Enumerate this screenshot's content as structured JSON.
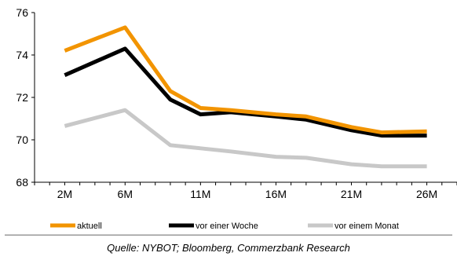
{
  "chart_data": {
    "type": "line",
    "x_tick_labels": [
      "2M",
      "6M",
      "11M",
      "16M",
      "21M",
      "26M"
    ],
    "x": [
      2,
      6,
      9,
      11,
      13,
      16,
      18,
      21,
      23,
      26
    ],
    "xlim": [
      0,
      28
    ],
    "ylim": [
      68,
      76
    ],
    "y_ticks": [
      68,
      70,
      72,
      74,
      76
    ],
    "grid": false,
    "legend_position": "bottom",
    "series": [
      {
        "name": "aktuell",
        "color": "#f29400",
        "values": [
          74.2,
          75.3,
          72.3,
          71.5,
          71.4,
          71.2,
          71.1,
          70.6,
          70.35,
          70.4
        ]
      },
      {
        "name": "vor einer Woche",
        "color": "#000000",
        "values": [
          73.05,
          74.3,
          71.9,
          71.2,
          71.3,
          71.1,
          70.95,
          70.45,
          70.2,
          70.2
        ]
      },
      {
        "name": "vor einem Monat",
        "color": "#c8c8c8",
        "values": [
          70.65,
          71.4,
          69.75,
          69.6,
          69.45,
          69.2,
          69.15,
          68.85,
          68.75,
          68.75
        ]
      }
    ]
  },
  "source_text": "Quelle: NYBOT; Bloomberg, Commerzbank Research"
}
